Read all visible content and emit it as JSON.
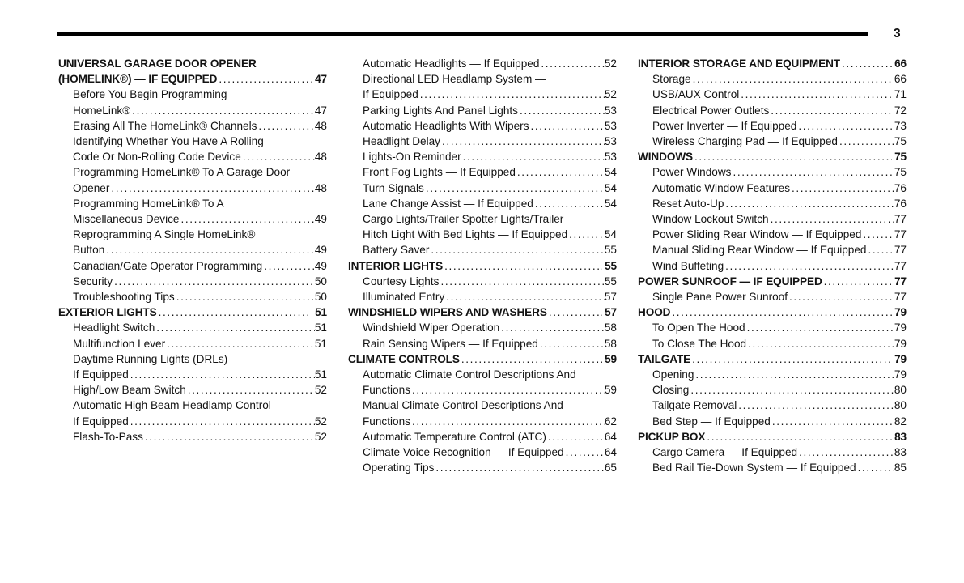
{
  "page": {
    "number": "3"
  },
  "toc": {
    "columns": [
      {
        "entries": [
          {
            "level": "section",
            "lines": [
              "UNIVERSAL GARAGE DOOR OPENER",
              "(HOMELINK®) — IF EQUIPPED"
            ],
            "page": "47"
          },
          {
            "level": "sub",
            "lines": [
              "Before You Begin Programming",
              "HomeLink®"
            ],
            "page": "47"
          },
          {
            "level": "sub",
            "lines": [
              "Erasing All The HomeLink® Channels"
            ],
            "page": "48"
          },
          {
            "level": "sub",
            "lines": [
              "Identifying Whether You Have A Rolling",
              "Code Or Non-Rolling Code Device"
            ],
            "page": "48"
          },
          {
            "level": "sub",
            "lines": [
              "Programming HomeLink® To A Garage Door",
              "Opener"
            ],
            "page": "48"
          },
          {
            "level": "sub",
            "lines": [
              "Programming HomeLink® To A",
              "Miscellaneous Device"
            ],
            "page": "49"
          },
          {
            "level": "sub",
            "lines": [
              "Reprogramming A Single HomeLink®",
              "Button"
            ],
            "page": "49"
          },
          {
            "level": "sub",
            "lines": [
              "Canadian/Gate Operator Programming"
            ],
            "page": "49"
          },
          {
            "level": "sub",
            "lines": [
              "Security"
            ],
            "page": "50"
          },
          {
            "level": "sub",
            "lines": [
              "Troubleshooting Tips"
            ],
            "page": "50"
          },
          {
            "level": "section",
            "lines": [
              "EXTERIOR LIGHTS"
            ],
            "page": "51"
          },
          {
            "level": "sub",
            "lines": [
              "Headlight Switch"
            ],
            "page": "51"
          },
          {
            "level": "sub",
            "lines": [
              "Multifunction Lever"
            ],
            "page": "51"
          },
          {
            "level": "sub",
            "lines": [
              "Daytime Running Lights (DRLs) —",
              "If Equipped"
            ],
            "page": "51"
          },
          {
            "level": "sub",
            "lines": [
              "High/Low Beam Switch"
            ],
            "page": "52"
          },
          {
            "level": "sub",
            "lines": [
              "Automatic High Beam Headlamp Control —",
              "If Equipped"
            ],
            "page": "52"
          },
          {
            "level": "sub",
            "lines": [
              "Flash-To-Pass"
            ],
            "page": "52"
          }
        ]
      },
      {
        "entries": [
          {
            "level": "sub",
            "lines": [
              "Automatic Headlights — If Equipped"
            ],
            "page": "52"
          },
          {
            "level": "sub",
            "lines": [
              "Directional LED Headlamp System —",
              "If Equipped"
            ],
            "page": "52"
          },
          {
            "level": "sub",
            "lines": [
              "Parking Lights And Panel Lights"
            ],
            "page": "53"
          },
          {
            "level": "sub",
            "lines": [
              "Automatic Headlights With Wipers"
            ],
            "page": "53"
          },
          {
            "level": "sub",
            "lines": [
              "Headlight Delay"
            ],
            "page": "53"
          },
          {
            "level": "sub",
            "lines": [
              "Lights-On Reminder"
            ],
            "page": "53"
          },
          {
            "level": "sub",
            "lines": [
              "Front Fog Lights — If Equipped"
            ],
            "page": "54"
          },
          {
            "level": "sub",
            "lines": [
              "Turn Signals"
            ],
            "page": "54"
          },
          {
            "level": "sub",
            "lines": [
              "Lane Change Assist — If Equipped"
            ],
            "page": "54"
          },
          {
            "level": "sub",
            "lines": [
              "Cargo Lights/Trailer Spotter Lights/Trailer",
              "Hitch Light With Bed Lights — If Equipped"
            ],
            "page": "54"
          },
          {
            "level": "sub",
            "lines": [
              "Battery Saver"
            ],
            "page": "55"
          },
          {
            "level": "section",
            "lines": [
              "INTERIOR LIGHTS"
            ],
            "page": "55"
          },
          {
            "level": "sub",
            "lines": [
              "Courtesy Lights"
            ],
            "page": "55"
          },
          {
            "level": "sub",
            "lines": [
              "Illuminated Entry"
            ],
            "page": "57"
          },
          {
            "level": "section",
            "lines": [
              "WINDSHIELD WIPERS AND WASHERS"
            ],
            "page": "57"
          },
          {
            "level": "sub",
            "lines": [
              "Windshield Wiper Operation"
            ],
            "page": "58"
          },
          {
            "level": "sub",
            "lines": [
              "Rain Sensing Wipers — If Equipped"
            ],
            "page": "58"
          },
          {
            "level": "section",
            "lines": [
              "CLIMATE CONTROLS"
            ],
            "page": "59"
          },
          {
            "level": "sub",
            "lines": [
              "Automatic Climate Control Descriptions And",
              "Functions"
            ],
            "page": "59"
          },
          {
            "level": "sub",
            "lines": [
              "Manual Climate Control Descriptions And",
              "Functions"
            ],
            "page": "62"
          },
          {
            "level": "sub",
            "lines": [
              "Automatic Temperature Control (ATC)"
            ],
            "page": "64"
          },
          {
            "level": "sub",
            "lines": [
              "Climate Voice Recognition — If Equipped"
            ],
            "page": "64"
          },
          {
            "level": "sub",
            "lines": [
              "Operating Tips"
            ],
            "page": "65"
          }
        ]
      },
      {
        "entries": [
          {
            "level": "section",
            "lines": [
              "INTERIOR STORAGE AND EQUIPMENT"
            ],
            "page": "66"
          },
          {
            "level": "sub",
            "lines": [
              "Storage"
            ],
            "page": "66"
          },
          {
            "level": "sub",
            "lines": [
              "USB/AUX Control"
            ],
            "page": "71"
          },
          {
            "level": "sub",
            "lines": [
              "Electrical Power Outlets"
            ],
            "page": "72"
          },
          {
            "level": "sub",
            "lines": [
              "Power Inverter — If Equipped"
            ],
            "page": "73"
          },
          {
            "level": "sub",
            "lines": [
              "Wireless Charging Pad — If Equipped"
            ],
            "page": "75"
          },
          {
            "level": "section",
            "lines": [
              "WINDOWS"
            ],
            "page": "75"
          },
          {
            "level": "sub",
            "lines": [
              "Power Windows"
            ],
            "page": "75"
          },
          {
            "level": "sub",
            "lines": [
              "Automatic Window Features"
            ],
            "page": "76"
          },
          {
            "level": "sub",
            "lines": [
              "Reset Auto-Up"
            ],
            "page": "76"
          },
          {
            "level": "sub",
            "lines": [
              "Window Lockout Switch"
            ],
            "page": "77"
          },
          {
            "level": "sub",
            "lines": [
              "Power Sliding Rear Window — If Equipped"
            ],
            "page": "77"
          },
          {
            "level": "sub",
            "lines": [
              "Manual Sliding Rear Window — If Equipped"
            ],
            "page": "77"
          },
          {
            "level": "sub",
            "lines": [
              "Wind Buffeting"
            ],
            "page": "77"
          },
          {
            "level": "section",
            "lines": [
              "POWER SUNROOF — IF EQUIPPED"
            ],
            "page": "77"
          },
          {
            "level": "sub",
            "lines": [
              "Single Pane Power Sunroof"
            ],
            "page": "77"
          },
          {
            "level": "section",
            "lines": [
              "HOOD"
            ],
            "page": "79"
          },
          {
            "level": "sub",
            "lines": [
              "To Open The Hood"
            ],
            "page": "79"
          },
          {
            "level": "sub",
            "lines": [
              "To Close The Hood"
            ],
            "page": "79"
          },
          {
            "level": "section",
            "lines": [
              "TAILGATE"
            ],
            "page": "79"
          },
          {
            "level": "sub",
            "lines": [
              "Opening"
            ],
            "page": "79"
          },
          {
            "level": "sub",
            "lines": [
              "Closing"
            ],
            "page": "80"
          },
          {
            "level": "sub",
            "lines": [
              "Tailgate Removal"
            ],
            "page": "80"
          },
          {
            "level": "sub",
            "lines": [
              "Bed Step — If Equipped"
            ],
            "page": "82"
          },
          {
            "level": "section",
            "lines": [
              "PICKUP BOX"
            ],
            "page": "83"
          },
          {
            "level": "sub",
            "lines": [
              "Cargo Camera — If Equipped"
            ],
            "page": "83"
          },
          {
            "level": "sub",
            "lines": [
              "Bed Rail Tie-Down System — If Equipped"
            ],
            "page": "85"
          }
        ]
      }
    ]
  }
}
